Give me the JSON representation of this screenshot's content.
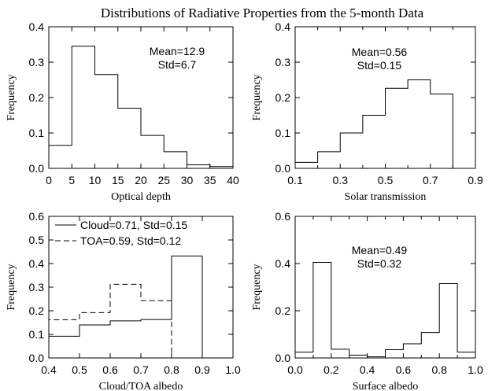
{
  "title": "Distributions of Radiative Properties from  the 5-month Data",
  "chart_data": [
    {
      "type": "histogram",
      "xlabel": "Optical depth",
      "ylabel": "Frequency",
      "xlim": [
        0,
        40
      ],
      "ylim": [
        0,
        0.4
      ],
      "xticks": [
        0,
        5,
        10,
        15,
        20,
        25,
        30,
        35,
        40
      ],
      "xtick_labels": [
        "0",
        "5",
        "10",
        "15",
        "20",
        "25",
        "30",
        "35",
        "40"
      ],
      "yticks": [
        0,
        0.1,
        0.2,
        0.3,
        0.4
      ],
      "ytick_labels": [
        "0.0",
        "0.1",
        "0.2",
        "0.3",
        "0.4"
      ],
      "series": [
        {
          "style": "solid",
          "bin_edges": [
            0,
            5,
            10,
            15,
            20,
            25,
            30,
            35,
            40
          ],
          "values": [
            0.065,
            0.345,
            0.265,
            0.17,
            0.093,
            0.047,
            0.01,
            0.005
          ]
        }
      ],
      "annotations": [
        "Mean=12.9",
        "Std=6.7"
      ]
    },
    {
      "type": "histogram",
      "xlabel": "Solar transmission",
      "ylabel": "Frequency",
      "xlim": [
        0.1,
        0.9
      ],
      "ylim": [
        0,
        0.4
      ],
      "xticks": [
        0.1,
        0.3,
        0.5,
        0.7,
        0.9
      ],
      "xtick_labels": [
        "0.1",
        "0.3",
        "0.5",
        "0.7",
        "0.9"
      ],
      "minor_xticks": [
        0.2,
        0.4,
        0.6,
        0.8
      ],
      "yticks": [
        0,
        0.1,
        0.2,
        0.3,
        0.4
      ],
      "ytick_labels": [
        "0.0",
        "0.1",
        "0.2",
        "0.3",
        "0.4"
      ],
      "series": [
        {
          "style": "solid",
          "bin_edges": [
            0.1,
            0.2,
            0.3,
            0.4,
            0.5,
            0.6,
            0.7,
            0.8
          ],
          "values": [
            0.017,
            0.047,
            0.1,
            0.15,
            0.226,
            0.25,
            0.21
          ]
        }
      ],
      "annotations": [
        "Mean=0.56",
        "Std=0.15"
      ]
    },
    {
      "type": "histogram",
      "xlabel": "Cloud/TOA albedo",
      "ylabel": "Frequency",
      "xlim": [
        0.4,
        1.0
      ],
      "ylim": [
        0,
        0.6
      ],
      "xticks": [
        0.4,
        0.5,
        0.6,
        0.7,
        0.8,
        0.9,
        1.0
      ],
      "xtick_labels": [
        "0.4",
        "0.5",
        "0.6",
        "0.7",
        "0.8",
        "0.9",
        "1.0"
      ],
      "yticks": [
        0,
        0.1,
        0.2,
        0.3,
        0.4,
        0.5,
        0.6
      ],
      "ytick_labels": [
        "0.0",
        "0.1",
        "0.2",
        "0.3",
        "0.4",
        "0.5",
        "0.6"
      ],
      "legend": "top-left",
      "series": [
        {
          "name": "Cloud=0.71, Std=0.15",
          "style": "solid",
          "bin_edges": [
            0.4,
            0.5,
            0.6,
            0.7,
            0.8,
            0.9
          ],
          "values": [
            0.092,
            0.14,
            0.157,
            0.163,
            0.432
          ]
        },
        {
          "name": "TOA=0.59, Std=0.12",
          "style": "dashed",
          "bin_edges": [
            0.4,
            0.5,
            0.6,
            0.7,
            0.8
          ],
          "values": [
            0.162,
            0.192,
            0.312,
            0.243
          ]
        }
      ],
      "annotations": []
    },
    {
      "type": "histogram",
      "xlabel": "Surface albedo",
      "ylabel": "Frequency",
      "xlim": [
        0,
        1.0
      ],
      "ylim": [
        0,
        0.6
      ],
      "xticks": [
        0,
        0.2,
        0.4,
        0.6,
        0.8,
        1.0
      ],
      "xtick_labels": [
        "0.0",
        "0.2",
        "0.4",
        "0.6",
        "0.8",
        "1.0"
      ],
      "minor_xticks": [
        0.1,
        0.3,
        0.5,
        0.7,
        0.9
      ],
      "yticks": [
        0,
        0.2,
        0.4,
        0.6
      ],
      "ytick_labels": [
        "0.0",
        "0.2",
        "0.4",
        "0.6"
      ],
      "series": [
        {
          "style": "solid",
          "bin_edges": [
            0,
            0.1,
            0.2,
            0.3,
            0.4,
            0.5,
            0.6,
            0.7,
            0.8,
            0.9,
            1.0
          ],
          "values": [
            0.025,
            0.405,
            0.037,
            0.012,
            0.005,
            0.035,
            0.06,
            0.108,
            0.315,
            0.025
          ]
        }
      ],
      "annotations": [
        "Mean=0.49",
        "Std=0.32"
      ]
    }
  ]
}
